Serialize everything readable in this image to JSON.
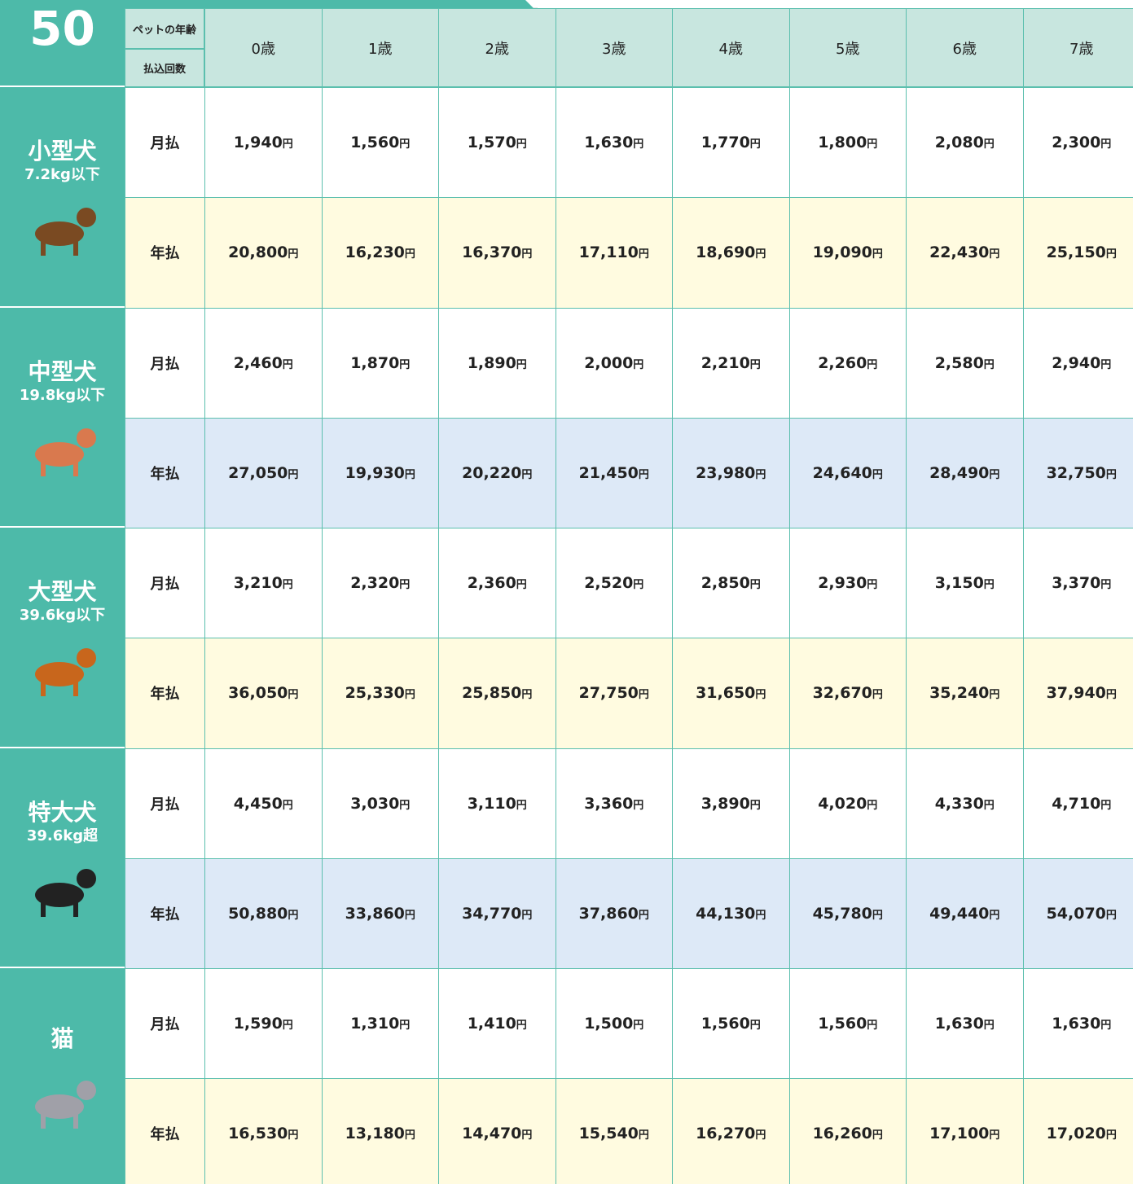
{
  "badge": "50",
  "header": {
    "age_label": "ペットの年齢",
    "payment_label": "払込回数",
    "ages": [
      "0歳",
      "1歳",
      "2歳",
      "3歳",
      "4歳",
      "5歳",
      "6歳",
      "7歳"
    ]
  },
  "unit": "円",
  "groups": [
    {
      "name": "小型犬",
      "weight": "7.2kg以下",
      "rows": [
        {
          "label": "月払",
          "values": [
            "1,940",
            "1,560",
            "1,570",
            "1,630",
            "1,770",
            "1,800",
            "2,080",
            "2,300"
          ]
        },
        {
          "label": "年払",
          "values": [
            "20,800",
            "16,230",
            "16,370",
            "17,110",
            "18,690",
            "19,090",
            "22,430",
            "25,150"
          ]
        }
      ]
    },
    {
      "name": "中型犬",
      "weight": "19.8kg以下",
      "rows": [
        {
          "label": "月払",
          "values": [
            "2,460",
            "1,870",
            "1,890",
            "2,000",
            "2,210",
            "2,260",
            "2,580",
            "2,940"
          ]
        },
        {
          "label": "年払",
          "values": [
            "27,050",
            "19,930",
            "20,220",
            "21,450",
            "23,980",
            "24,640",
            "28,490",
            "32,750"
          ]
        }
      ]
    },
    {
      "name": "大型犬",
      "weight": "39.6kg以下",
      "rows": [
        {
          "label": "月払",
          "values": [
            "3,210",
            "2,320",
            "2,360",
            "2,520",
            "2,850",
            "2,930",
            "3,150",
            "3,370"
          ]
        },
        {
          "label": "年払",
          "values": [
            "36,050",
            "25,330",
            "25,850",
            "27,750",
            "31,650",
            "32,670",
            "35,240",
            "37,940"
          ]
        }
      ]
    },
    {
      "name": "特大犬",
      "weight": "39.6kg超",
      "rows": [
        {
          "label": "月払",
          "values": [
            "4,450",
            "3,030",
            "3,110",
            "3,360",
            "3,890",
            "4,020",
            "4,330",
            "4,710"
          ]
        },
        {
          "label": "年払",
          "values": [
            "50,880",
            "33,860",
            "34,770",
            "37,860",
            "44,130",
            "45,780",
            "49,440",
            "54,070"
          ]
        }
      ]
    },
    {
      "name": "猫",
      "rows": [
        {
          "label": "月払",
          "values": [
            "1,590",
            "1,310",
            "1,410",
            "1,500",
            "1,560",
            "1,560",
            "1,630",
            "1,630"
          ]
        },
        {
          "label": "年払",
          "values": [
            "16,530",
            "13,180",
            "14,470",
            "15,540",
            "16,270",
            "16,260",
            "17,100",
            "17,020"
          ]
        }
      ]
    }
  ]
}
